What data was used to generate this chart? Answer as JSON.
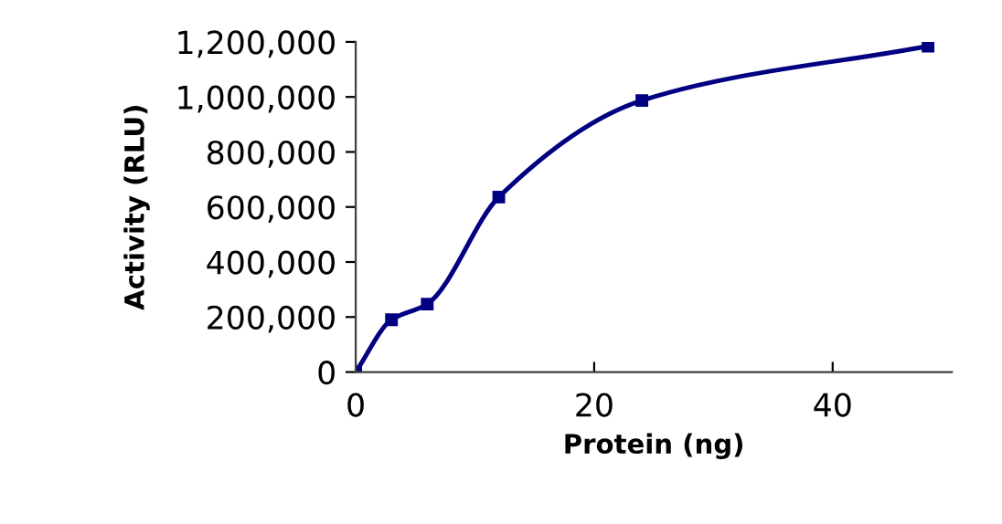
{
  "chart_data": {
    "type": "line",
    "xlabel": "Protein (ng)",
    "ylabel": "Activity (RLU)",
    "x": [
      0,
      3,
      6,
      12,
      24,
      48
    ],
    "series": [
      {
        "color": "#000080",
        "values": [
          0,
          190000,
          247000,
          636000,
          987000,
          1185000
        ]
      }
    ],
    "xlim": [
      0,
      50
    ],
    "xticks": [
      0,
      20,
      40
    ],
    "ylim": [
      0,
      1200000
    ],
    "yticks": [
      {
        "value": 0,
        "label": "0"
      },
      {
        "value": 200000,
        "label": "200,000"
      },
      {
        "value": 400000,
        "label": "400,000"
      },
      {
        "value": 600000,
        "label": "600,000"
      },
      {
        "value": 800000,
        "label": "800,000"
      },
      {
        "value": 1000000,
        "label": "1,000,000"
      },
      {
        "value": 1200000,
        "label": "1,200,000"
      }
    ],
    "grid": false,
    "marker": "square",
    "line_style": "solid",
    "legend": false
  }
}
